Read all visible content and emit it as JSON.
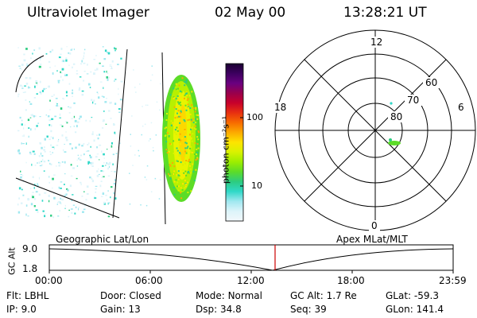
{
  "header": {
    "instrument": "Ultraviolet Imager",
    "date": "02 May 00",
    "time": "13:28:21 UT"
  },
  "colorbar": {
    "unit_label": "photon cm⁻²s⁻¹",
    "tick_labels": [
      "100",
      "10"
    ],
    "colors": [
      "#1a0030",
      "#3d0060",
      "#6a0080",
      "#99004c",
      "#c8002a",
      "#e83010",
      "#f76b00",
      "#fcaa00",
      "#fde400",
      "#d8f200",
      "#9cee00",
      "#5cdc28",
      "#2ccc80",
      "#30d8c8",
      "#a0e8f0",
      "#dcf4fa",
      "#f2f8fb"
    ]
  },
  "polar": {
    "mlt_labels": [
      "12",
      "18",
      "6",
      "0"
    ],
    "lat_labels": [
      "60",
      "70",
      "80"
    ]
  },
  "timeline": {
    "left_title": "Geographic Lat/Lon",
    "right_title": "Apex MLat/MLT",
    "axis_label": "GC Alt",
    "y_labels": [
      "9.0",
      "1.8"
    ],
    "x_labels": [
      "00:00",
      "06:00",
      "12:00",
      "18:00",
      "23:59"
    ],
    "marker_color": "#cc0000"
  },
  "info": {
    "row1": [
      {
        "key": "Flt:",
        "value": "LBHL"
      },
      {
        "key": "Door:",
        "value": "Closed"
      },
      {
        "key": "Mode:",
        "value": "Normal"
      },
      {
        "key": "GC Alt:",
        "value": "1.7 Re"
      },
      {
        "key": "GLat:",
        "value": "-59.3"
      }
    ],
    "row2": [
      {
        "key": "IP:",
        "value": "9.0"
      },
      {
        "key": "Gain:",
        "value": "13"
      },
      {
        "key": "Dsp:",
        "value": "34.8"
      },
      {
        "key": "Seq:",
        "value": "39"
      },
      {
        "key": "GLon:",
        "value": "141.4"
      }
    ]
  }
}
